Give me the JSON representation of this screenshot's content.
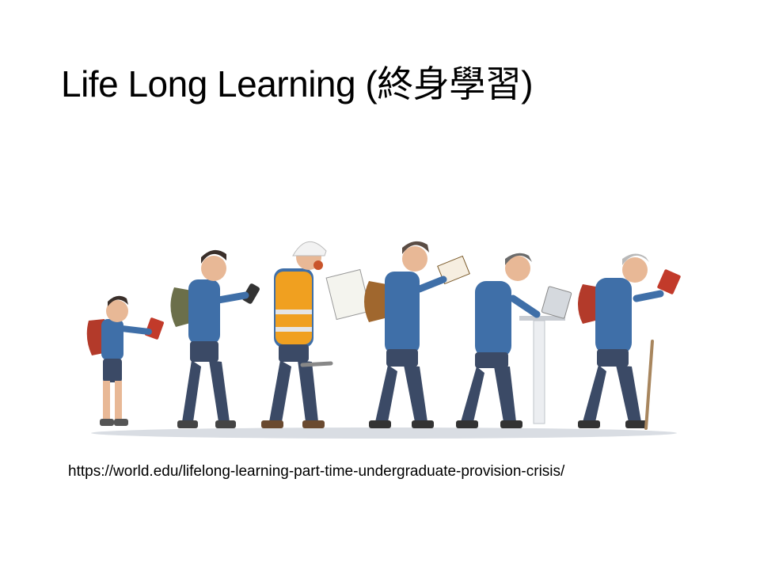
{
  "slide": {
    "title": "Life Long Learning (終身學習)",
    "source_url": "https://world.edu/lifelong-learning-part-time-undergraduate-provision-crisis/"
  },
  "illustration": {
    "icon": "lifelong-learning-people-illustration-icon",
    "colors": {
      "shirt": "#3f6fa8",
      "jeans": "#3b4a66",
      "backpack": "#b33a2a",
      "vest": "#f0a020",
      "skin": "#e8b896",
      "hair_dark": "#3a2f2a",
      "hair_gray": "#b9b9b9",
      "device": "#c23a2a",
      "shadow": "#d9dde3"
    }
  }
}
